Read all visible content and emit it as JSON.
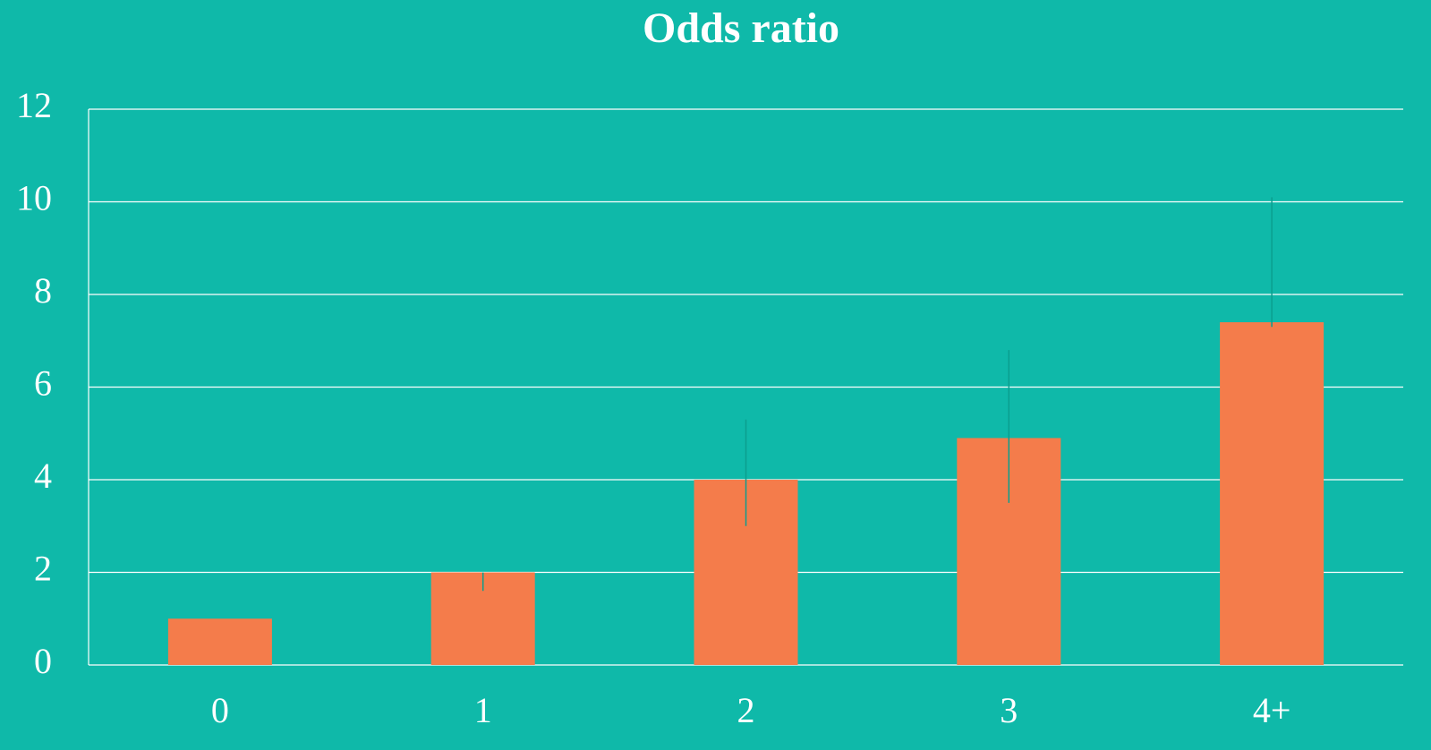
{
  "chart_data": {
    "type": "bar",
    "title": "Odds ratio",
    "categories": [
      "0",
      "1",
      "2",
      "3",
      "4+"
    ],
    "values": [
      1,
      2,
      4,
      4.9,
      7.4
    ],
    "error_low": [
      null,
      1.6,
      3.0,
      3.5,
      7.3
    ],
    "error_high": [
      null,
      2.0,
      5.3,
      6.8,
      10.1
    ],
    "color": "#f47c4b",
    "error_color": "#0b9e8e",
    "ylim": [
      0,
      12
    ],
    "yticks": [
      0,
      2,
      4,
      6,
      8,
      10,
      12
    ],
    "grid": true
  }
}
